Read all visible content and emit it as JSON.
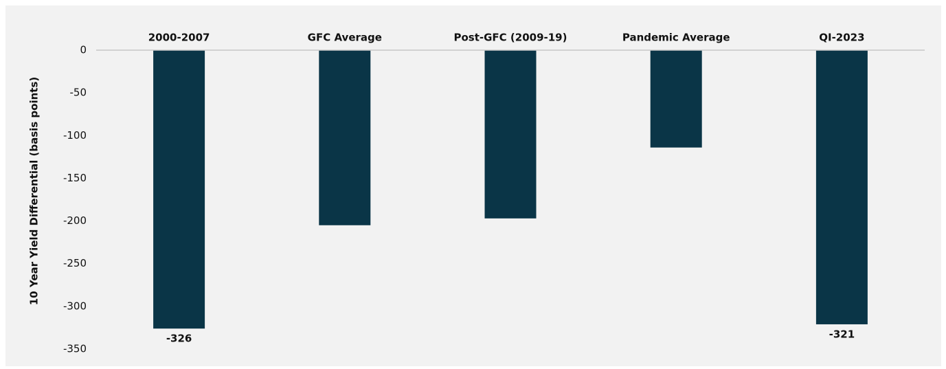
{
  "chart_data": {
    "type": "bar",
    "categories": [
      "2000-2007",
      "GFC Average",
      "Post-GFC (2009-19)",
      "Pandemic Average",
      "QI-2023"
    ],
    "values": [
      -326,
      -205,
      -197,
      -114,
      -321
    ],
    "value_labels": [
      "-326",
      null,
      null,
      null,
      "-321"
    ],
    "color": "#0a3547",
    "y_label": "10 Year Yield Differential (basis points)",
    "ylim": [
      -350,
      0
    ],
    "yticks": [
      0,
      -50,
      -100,
      -150,
      -200,
      -250,
      -300,
      -350
    ]
  }
}
